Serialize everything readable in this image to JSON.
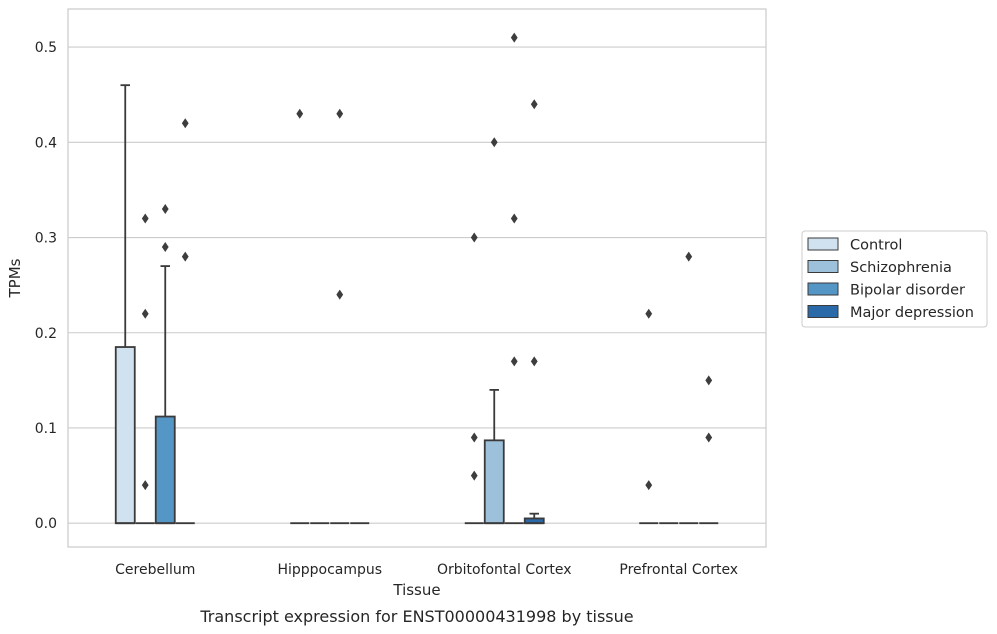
{
  "caption": "Transcript expression for ENST00000431998 by tissue",
  "chart_data": {
    "type": "box",
    "xlabel": "Tissue",
    "ylabel": "TPMs",
    "ylim": [
      -0.025,
      0.54
    ],
    "yticks": [
      "0.0",
      "0.1",
      "0.2",
      "0.3",
      "0.4",
      "0.5"
    ],
    "grid": true,
    "legend_position": "right",
    "categories": [
      "Cerebellum",
      "Hipppocampus",
      "Orbitofontal Cortex",
      "Prefrontal Cortex"
    ],
    "series": [
      {
        "name": "Control",
        "color": "#d0e1f0",
        "boxes": [
          {
            "q1": 0,
            "median": 0,
            "q3": 0.185,
            "whisker_low": 0,
            "whisker_high": 0.46,
            "outliers": []
          },
          {
            "q1": 0,
            "median": 0,
            "q3": 0,
            "whisker_low": 0,
            "whisker_high": 0,
            "outliers": [
              0.43
            ]
          },
          {
            "q1": 0,
            "median": 0,
            "q3": 0,
            "whisker_low": 0,
            "whisker_high": 0,
            "outliers": [
              0.05,
              0.09,
              0.3
            ]
          },
          {
            "q1": 0,
            "median": 0,
            "q3": 0,
            "whisker_low": 0,
            "whisker_high": 0,
            "outliers": [
              0.04,
              0.22
            ]
          }
        ]
      },
      {
        "name": "Schizophrenia",
        "color": "#9dc1da",
        "boxes": [
          {
            "q1": 0,
            "median": 0,
            "q3": 0,
            "whisker_low": 0,
            "whisker_high": 0,
            "outliers": [
              0.04,
              0.22,
              0.32
            ]
          },
          {
            "q1": 0,
            "median": 0,
            "q3": 0,
            "whisker_low": 0,
            "whisker_high": 0,
            "outliers": []
          },
          {
            "q1": 0,
            "median": 0,
            "q3": 0.087,
            "whisker_low": 0,
            "whisker_high": 0.14,
            "outliers": [
              0.4
            ]
          },
          {
            "q1": 0,
            "median": 0,
            "q3": 0,
            "whisker_low": 0,
            "whisker_high": 0,
            "outliers": []
          }
        ]
      },
      {
        "name": "Bipolar disorder",
        "color": "#5496c6",
        "boxes": [
          {
            "q1": 0,
            "median": 0,
            "q3": 0.112,
            "whisker_low": 0,
            "whisker_high": 0.27,
            "outliers": [
              0.29,
              0.33
            ]
          },
          {
            "q1": 0,
            "median": 0,
            "q3": 0,
            "whisker_low": 0,
            "whisker_high": 0,
            "outliers": [
              0.24,
              0.43
            ]
          },
          {
            "q1": 0,
            "median": 0,
            "q3": 0,
            "whisker_low": 0,
            "whisker_high": 0,
            "outliers": [
              0.17,
              0.32,
              0.51
            ]
          },
          {
            "q1": 0,
            "median": 0,
            "q3": 0,
            "whisker_low": 0,
            "whisker_high": 0,
            "outliers": [
              0.28
            ]
          }
        ]
      },
      {
        "name": "Major depression",
        "color": "#2b6aa8",
        "boxes": [
          {
            "q1": 0,
            "median": 0,
            "q3": 0,
            "whisker_low": 0,
            "whisker_high": 0,
            "outliers": [
              0.28,
              0.42
            ]
          },
          {
            "q1": 0,
            "median": 0,
            "q3": 0,
            "whisker_low": 0,
            "whisker_high": 0,
            "outliers": []
          },
          {
            "q1": 0,
            "median": 0,
            "q3": 0.005,
            "whisker_low": 0,
            "whisker_high": 0.01,
            "outliers": [
              0.17,
              0.44
            ]
          },
          {
            "q1": 0,
            "median": 0,
            "q3": 0,
            "whisker_low": 0,
            "whisker_high": 0,
            "outliers": [
              0.09,
              0.15
            ]
          }
        ]
      }
    ]
  },
  "style": {
    "grid_color": "#cccccc",
    "frame_color": "#cccccc",
    "edge_color": "#3a3a3a",
    "text_color": "#262626"
  }
}
